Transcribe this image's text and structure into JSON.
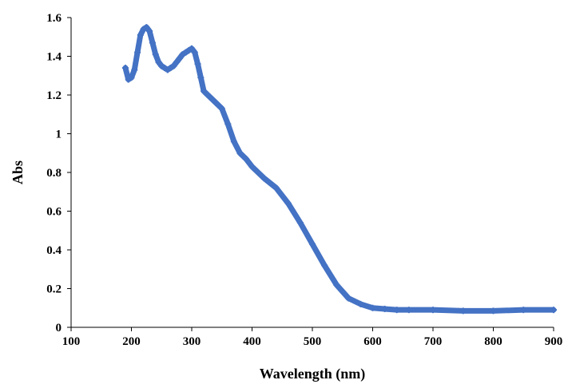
{
  "chart_data": {
    "type": "line",
    "title": "",
    "xlabel": "Wavelength (nm)",
    "ylabel": "Abs",
    "xlim": [
      100,
      900
    ],
    "ylim": [
      0,
      1.6
    ],
    "x_ticks": [
      100,
      200,
      300,
      400,
      500,
      600,
      700,
      800,
      900
    ],
    "y_ticks": [
      0,
      0.2,
      0.4,
      0.6,
      0.8,
      1,
      1.2,
      1.4,
      1.6
    ],
    "x_tick_labels": [
      "100",
      "200",
      "300",
      "400",
      "500",
      "600",
      "700",
      "800",
      "900"
    ],
    "y_tick_labels": [
      "0",
      "0.2",
      "0.4",
      "0.6",
      "0.8",
      "1",
      "1.2",
      "1.4",
      "1.6"
    ],
    "grid": false,
    "legend": "none",
    "series": [
      {
        "color": "#4472c4",
        "marker": "plus",
        "x": [
          190,
          195,
          200,
          205,
          210,
          215,
          220,
          225,
          230,
          235,
          240,
          245,
          250,
          255,
          260,
          265,
          270,
          275,
          280,
          285,
          290,
          295,
          300,
          305,
          310,
          315,
          320,
          330,
          340,
          350,
          360,
          370,
          380,
          390,
          400,
          420,
          440,
          460,
          480,
          500,
          520,
          540,
          560,
          580,
          600,
          620,
          640,
          660,
          700,
          750,
          800,
          850,
          900
        ],
        "y": [
          1.34,
          1.28,
          1.29,
          1.33,
          1.42,
          1.51,
          1.54,
          1.55,
          1.53,
          1.47,
          1.41,
          1.37,
          1.35,
          1.34,
          1.33,
          1.34,
          1.35,
          1.37,
          1.39,
          1.41,
          1.42,
          1.43,
          1.44,
          1.42,
          1.36,
          1.29,
          1.22,
          1.19,
          1.16,
          1.13,
          1.05,
          0.96,
          0.9,
          0.87,
          0.83,
          0.77,
          0.72,
          0.64,
          0.54,
          0.43,
          0.32,
          0.22,
          0.15,
          0.12,
          0.1,
          0.095,
          0.09,
          0.09,
          0.09,
          0.085,
          0.085,
          0.09,
          0.09
        ]
      }
    ]
  }
}
